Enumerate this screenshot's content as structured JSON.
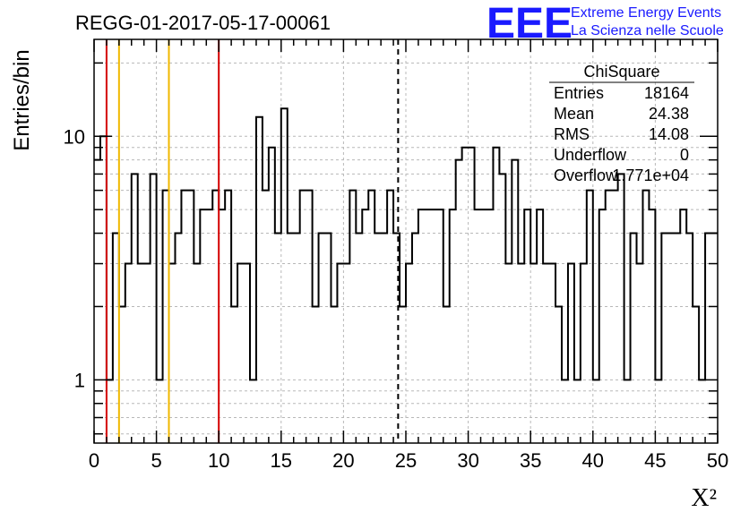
{
  "chart_data": {
    "type": "histogram",
    "title": "REGG-01-2017-05-17-00061",
    "xlabel": "X²",
    "ylabel": "Entries/bin",
    "xlim": [
      0,
      50
    ],
    "ylim": [
      0.55,
      25
    ],
    "yscale": "log",
    "grid": true,
    "x_ticks": [
      0,
      5,
      10,
      15,
      20,
      25,
      30,
      35,
      40,
      45,
      50
    ],
    "y_ticks": [
      1,
      10
    ],
    "bin_width": 0.5,
    "bin_start": 0,
    "values": [
      8,
      10,
      1,
      4,
      2,
      3,
      7,
      3,
      3,
      7,
      1,
      6,
      3,
      4,
      6,
      6,
      3,
      5,
      5,
      6,
      5,
      6,
      2,
      3,
      3,
      1,
      12,
      6,
      9,
      4,
      13,
      4,
      4,
      6,
      6,
      2,
      4,
      4,
      2,
      3,
      3,
      6,
      4,
      5,
      6,
      4,
      4,
      6,
      4,
      2,
      3,
      4,
      5,
      5,
      5,
      5,
      2,
      5,
      8,
      9,
      9,
      5,
      5,
      5,
      9,
      7,
      3,
      8,
      3,
      5,
      3,
      5,
      3,
      3,
      2,
      1,
      3,
      1,
      3,
      6,
      1,
      5,
      6,
      6,
      7,
      1,
      4,
      3,
      6,
      5,
      1,
      4,
      4,
      4,
      5,
      4,
      2,
      1,
      4,
      4
    ],
    "vertical_lines": [
      {
        "x": 1,
        "color": "#d40000",
        "style": "solid"
      },
      {
        "x": 2,
        "color": "#f0b800",
        "style": "solid"
      },
      {
        "x": 6,
        "color": "#f0b800",
        "style": "solid"
      },
      {
        "x": 10,
        "color": "#d40000",
        "style": "solid"
      },
      {
        "x": 24.38,
        "color": "#000000",
        "style": "dashed"
      }
    ],
    "stats_box": {
      "title": "ChiSquare",
      "rows": [
        {
          "label": "Entries",
          "value": "18164"
        },
        {
          "label": "Mean",
          "value": "24.38"
        },
        {
          "label": "RMS",
          "value": "14.08"
        },
        {
          "label": "Underflow",
          "value": "0"
        },
        {
          "label": "Overflow",
          "value": "1.771e+04"
        }
      ]
    }
  },
  "logo": {
    "text": "EEE",
    "line1": "Extreme Energy Events",
    "line2": "La Scienza nelle Scuole"
  }
}
